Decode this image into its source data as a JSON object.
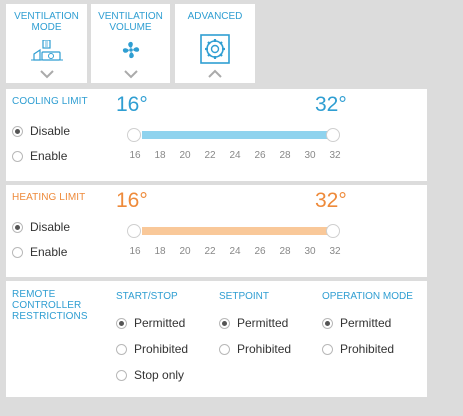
{
  "tabs": [
    {
      "label_line1": "VENTILATION",
      "label_line2": "MODE",
      "icon": "ventilation-mode-icon"
    },
    {
      "label_line1": "VENTILATION",
      "label_line2": "VOLUME",
      "icon": "fan-icon"
    },
    {
      "label_line1": "ADVANCED",
      "label_line2": "",
      "icon": "advanced-settings-icon"
    }
  ],
  "cooling": {
    "title": "COOLING LIMIT",
    "low": "16°",
    "high": "32°",
    "options": [
      "Disable",
      "Enable"
    ],
    "selected": "Disable",
    "range": [
      16,
      32
    ],
    "color": "#8fd3ee"
  },
  "heating": {
    "title": "HEATING LIMIT",
    "low": "16°",
    "high": "32°",
    "options": [
      "Disable",
      "Enable"
    ],
    "selected": "Disable",
    "range": [
      16,
      32
    ],
    "color": "#f9c899"
  },
  "ticks": [
    "16",
    "18",
    "20",
    "22",
    "24",
    "26",
    "28",
    "30",
    "32"
  ],
  "remote": {
    "title_lines": [
      "REMOTE",
      "CONTROLLER",
      "RESTRICTIONS"
    ],
    "columns": [
      {
        "heading": "START/STOP",
        "options": [
          "Permitted",
          "Prohibited",
          "Stop only"
        ],
        "selected": "Permitted"
      },
      {
        "heading": "SETPOINT",
        "options": [
          "Permitted",
          "Prohibited"
        ],
        "selected": "Permitted"
      },
      {
        "heading": "OPERATION MODE",
        "options": [
          "Permitted",
          "Prohibited"
        ],
        "selected": "Permitted"
      }
    ]
  },
  "colors": {
    "accent": "#2f9ed2",
    "heat": "#ee8a3a",
    "background": "#dcdcdc"
  }
}
